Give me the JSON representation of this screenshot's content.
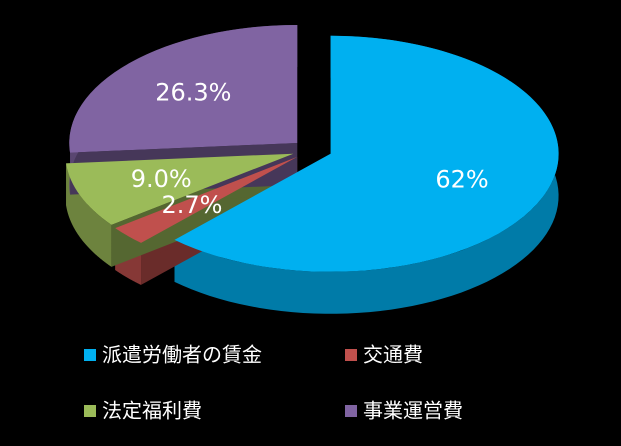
{
  "chart_data": {
    "type": "pie",
    "categories": [
      "派遣労働者の賃金",
      "交通費",
      "法定福利費",
      "事業運営費"
    ],
    "values": [
      62,
      2.7,
      9.0,
      26.3
    ],
    "value_labels": [
      "62%",
      "2.7%",
      "9.0%",
      "26.3%"
    ],
    "colors": [
      "#00b0f0",
      "#c0504d",
      "#9bbb59",
      "#8064a2"
    ],
    "legend": "bottom"
  }
}
